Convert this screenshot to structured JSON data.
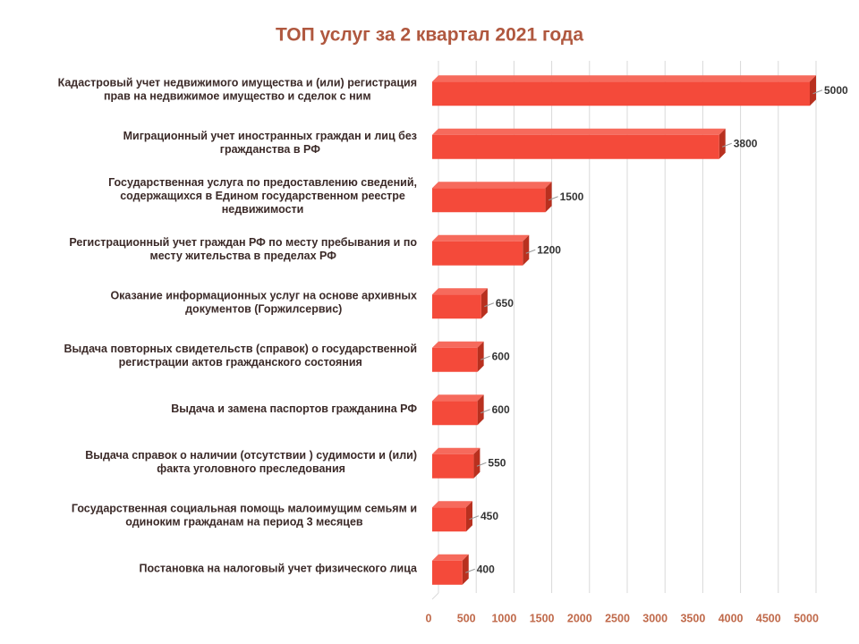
{
  "chart_data": {
    "type": "bar",
    "orientation": "horizontal",
    "title": "ТОП услуг за 2 квартал 2021 года",
    "categories": [
      "Кадастровый учет недвижимого имущества и (или)  регистрация\nправ на недвижимое имущество и сделок с ним",
      "Миграционный учет иностранных граждан и лиц без\nгражданства в РФ",
      "Государственная услуга по предоставлению сведений,\nсодержащихся в Едином государственном реестре\nнедвижимости",
      "Регистрационный учет граждан РФ по месту пребывания и по\nместу жительства в пределах РФ",
      "Оказание информационных услуг на основе архивных\nдокументов (Горжилсервис)",
      "Выдача повторных свидетельств (справок) о государственной\nрегистрации актов гражданского состояния",
      "Выдача и замена паспортов гражданина РФ",
      "Выдача справок о наличии (отсутствии ) судимости и (или)\nфакта  уголовного преследования",
      "Государственная социальная помощь малоимущим семьям и\nодиноким  гражданам на период 3 месяцев",
      "Постановка на налоговый учет физического лица"
    ],
    "values": [
      5000,
      3800,
      1500,
      1200,
      650,
      600,
      600,
      550,
      450,
      400
    ],
    "color": "#f44a3a",
    "xlim": [
      0,
      5000
    ],
    "xticks": [
      0,
      500,
      1000,
      1500,
      2000,
      2500,
      3000,
      3500,
      4000,
      4500,
      5000
    ],
    "grid": true
  }
}
